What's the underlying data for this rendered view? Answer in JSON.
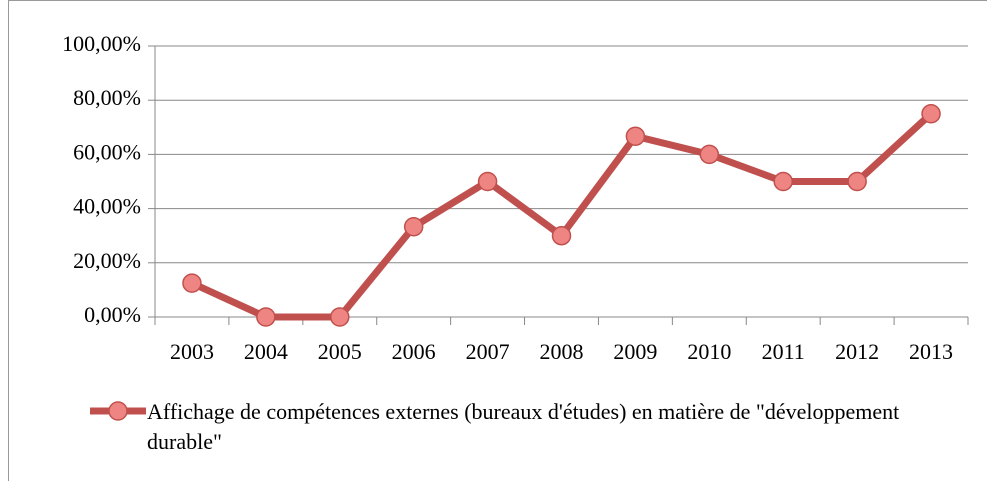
{
  "chart_data": {
    "type": "line",
    "categories": [
      "2003",
      "2004",
      "2005",
      "2006",
      "2007",
      "2008",
      "2009",
      "2010",
      "2011",
      "2012",
      "2013"
    ],
    "series": [
      {
        "name": "Affichage de compétences externes (bureaux d'études) en matière de \"développement durable\"",
        "color": "#c0504d",
        "marker_color": "#ef8582",
        "values": [
          12.5,
          0,
          0,
          33.3,
          50,
          30,
          66.7,
          60,
          50,
          50,
          75
        ]
      }
    ],
    "ylim": [
      0,
      100
    ],
    "yticks": [
      {
        "value": 0,
        "label": "0,00%"
      },
      {
        "value": 20,
        "label": "20,00%"
      },
      {
        "value": 40,
        "label": "40,00%"
      },
      {
        "value": 60,
        "label": "60,00%"
      },
      {
        "value": 80,
        "label": "80,00%"
      },
      {
        "value": 100,
        "label": "100,00%"
      }
    ],
    "grid": true,
    "legend": "bottom"
  }
}
